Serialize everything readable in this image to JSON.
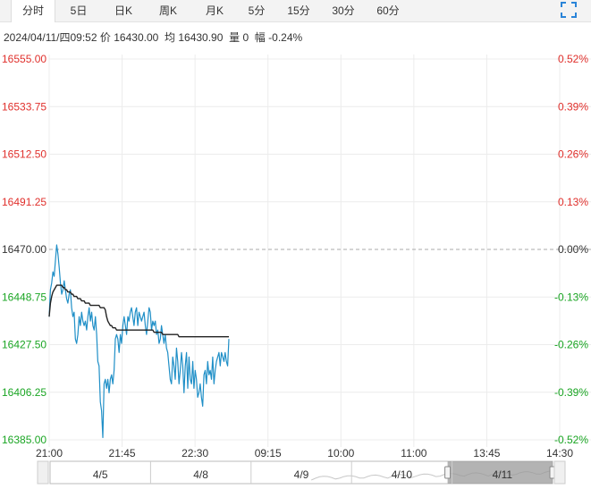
{
  "tabs": [
    "分时",
    "5日",
    "日K",
    "周K",
    "月K",
    "5分",
    "15分",
    "30分",
    "60分"
  ],
  "active_tab": 0,
  "info": {
    "datetime": "2024/04/11/四09:52",
    "price_label": "价",
    "price": "16430.00",
    "avg_label": "均",
    "avg": "16430.90",
    "vol_label": "量",
    "vol": "0",
    "chg_label": "幅",
    "chg": "-0.24%"
  },
  "colors": {
    "up": "#e0302c",
    "down": "#1aa523",
    "neutral": "#333333",
    "price_line": "#1f8fc7",
    "avg_line": "#222222",
    "grid": "#ececec"
  },
  "chart_data": {
    "type": "line",
    "prev_close": 16470.0,
    "ylim": [
      16385.0,
      16555.0
    ],
    "y_ticks_left": [
      "16555.00",
      "16533.75",
      "16512.50",
      "16491.25",
      "16470.00",
      "16448.75",
      "16427.50",
      "16406.25",
      "16385.00"
    ],
    "y_ticks_right": [
      "0.52%",
      "0.39%",
      "0.26%",
      "0.13%",
      "0.00%",
      "-0.13%",
      "-0.26%",
      "-0.39%",
      "-0.52%"
    ],
    "x_ticks": [
      "21:00",
      "21:45",
      "22:30",
      "09:15",
      "10:00",
      "11:00",
      "13:45",
      "14:30"
    ],
    "series": [
      {
        "values": [
          16440,
          16452,
          16455,
          16460,
          16458,
          16465,
          16472,
          16468,
          16462,
          16455,
          16450,
          16452,
          16456,
          16452,
          16448,
          16446,
          16450,
          16452,
          16444,
          16440,
          16442,
          16430,
          16428,
          16432,
          16440,
          16436,
          16442,
          16438,
          16436,
          16438,
          16434,
          16440,
          16444,
          16438,
          16442,
          16436,
          16434,
          16440,
          16432,
          16420,
          16418,
          16402,
          16398,
          16386,
          16410,
          16412,
          16408,
          16412,
          16406,
          16412,
          16414,
          16410,
          16416,
          16430,
          16432,
          16430,
          16424,
          16432,
          16428,
          16436,
          16440,
          16436,
          16432,
          16440,
          16438,
          16442,
          16444,
          16440,
          16436,
          16442,
          16444,
          16436,
          16442,
          16440,
          16438,
          16440,
          16442,
          16436,
          16432,
          16438,
          16444,
          16442,
          16434,
          16438,
          16436,
          16438,
          16432,
          16434,
          16428,
          16430,
          16436,
          16432,
          16428,
          16432,
          16426,
          16424,
          16418,
          16412,
          16410,
          16422,
          16418,
          16412,
          16426,
          16420,
          16410,
          16416,
          16424,
          16418,
          16406,
          16418,
          16424,
          16408,
          16422,
          16412,
          16410,
          16420,
          16408,
          16416,
          16412,
          16404,
          16406,
          16410,
          16404,
          16400,
          16414,
          16416,
          16410,
          16420,
          16414,
          16416,
          16412,
          16422,
          16410,
          16416,
          16420,
          16422,
          16424,
          16418,
          16424,
          16422,
          16420,
          16424,
          16420,
          16418,
          16430
        ]
      },
      {
        "values": [
          16440,
          16446,
          16449,
          16451,
          16452,
          16453,
          16454,
          16454,
          16454,
          16454,
          16454,
          16453,
          16453,
          16452,
          16452,
          16451,
          16451,
          16451,
          16450,
          16450,
          16449,
          16449,
          16449,
          16448,
          16448,
          16448,
          16447,
          16447,
          16447,
          16446,
          16446,
          16446,
          16446,
          16445,
          16445,
          16445,
          16445,
          16445,
          16445,
          16445,
          16445,
          16444,
          16444,
          16444,
          16444,
          16443,
          16440,
          16438,
          16437,
          16436,
          16436,
          16435,
          16435,
          16435,
          16434,
          16434,
          16434,
          16434,
          16434,
          16434,
          16434,
          16434,
          16434,
          16434,
          16434,
          16434,
          16434,
          16434,
          16434,
          16434,
          16434,
          16434,
          16434,
          16434,
          16434,
          16434,
          16434,
          16434,
          16434,
          16434,
          16434,
          16434,
          16434,
          16434,
          16433,
          16433,
          16433,
          16433,
          16433,
          16433,
          16433,
          16432,
          16432,
          16432,
          16432,
          16432,
          16432,
          16432,
          16432,
          16432,
          16432,
          16432,
          16432,
          16432,
          16431,
          16431,
          16431,
          16431,
          16431,
          16431,
          16431,
          16431,
          16431,
          16431,
          16431,
          16431,
          16431,
          16431,
          16431,
          16431,
          16431,
          16431,
          16431,
          16431,
          16431,
          16431,
          16431,
          16431,
          16431,
          16431,
          16431,
          16431,
          16431,
          16431,
          16431,
          16431,
          16431,
          16431,
          16431,
          16431,
          16431,
          16431,
          16431,
          16431,
          16431
        ]
      }
    ],
    "total_points": 410,
    "grid": true
  },
  "navigator": {
    "labels": [
      "4/5",
      "4/8",
      "4/9",
      "4/10",
      "4/11"
    ]
  }
}
